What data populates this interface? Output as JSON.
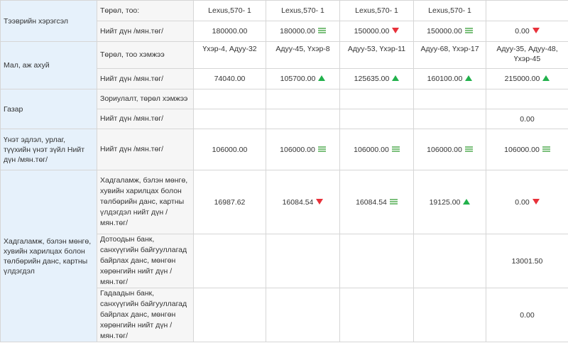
{
  "rows": {
    "equipment": {
      "category": "Тээврийн хэрэгсэл",
      "type_label": "Төрөл, тоо:",
      "types": [
        "Lexus,570- 1",
        "Lexus,570- 1",
        "Lexus,570- 1",
        "Lexus,570- 1",
        ""
      ],
      "total_label": "Нийт дүн /мян.төг/",
      "totals": [
        {
          "value": "180000.00",
          "trend": ""
        },
        {
          "value": "180000.00",
          "trend": "equal"
        },
        {
          "value": "150000.00",
          "trend": "down"
        },
        {
          "value": "150000.00",
          "trend": "equal"
        },
        {
          "value": "0.00",
          "trend": "down"
        }
      ]
    },
    "livestock": {
      "category": "Мал, аж ахуй",
      "type_label": "Төрөл, тоо хэмжээ",
      "types": [
        "Үхэр-4, Адуу-32",
        "Адуу-45, Үхэр-8",
        "Адуу-53, Үхэр-11",
        "Адуу-68, Үхэр-17",
        "Адуу-35, Адуу-48, Үхэр-45"
      ],
      "total_label": "Нийт дүн /мян.төг/",
      "totals": [
        {
          "value": "74040.00",
          "trend": ""
        },
        {
          "value": "105700.00",
          "trend": "up"
        },
        {
          "value": "125635.00",
          "trend": "up"
        },
        {
          "value": "160100.00",
          "trend": "up"
        },
        {
          "value": "215000.00",
          "trend": "up"
        }
      ]
    },
    "land": {
      "category": "Газар",
      "type_label": "Зориулалт, төрөл хэмжээ",
      "total_label": "Нийт дүн /мян.төг/",
      "totals": [
        {
          "value": "",
          "trend": ""
        },
        {
          "value": "",
          "trend": ""
        },
        {
          "value": "",
          "trend": ""
        },
        {
          "value": "",
          "trend": ""
        },
        {
          "value": "0.00",
          "trend": ""
        }
      ]
    },
    "valuables": {
      "category": "Үнэт эдлэл, урлаг, түүхийн үнэт зүйл Нийт дүн /мян.төг/",
      "total_label": "Нийт дүн /мян.төг/",
      "totals": [
        {
          "value": "106000.00",
          "trend": ""
        },
        {
          "value": "106000.00",
          "trend": "equal"
        },
        {
          "value": "106000.00",
          "trend": "equal"
        },
        {
          "value": "106000.00",
          "trend": "equal"
        },
        {
          "value": "106000.00",
          "trend": "equal"
        }
      ]
    },
    "savings": {
      "category": "Хадгаламж, бэлэн мөнгө, хувийн харилцах болон төлбөрийн данс, картны үлдэгдэл",
      "total": {
        "label": "Хадгаламж, бэлэн мөнгө, хувийн харилцах болон төлбөрийн данс, картны үлдэгдэл нийт дүн /мян.төг/",
        "values": [
          {
            "value": "16987.62",
            "trend": ""
          },
          {
            "value": "16084.54",
            "trend": "down"
          },
          {
            "value": "16084.54",
            "trend": "equal"
          },
          {
            "value": "19125.00",
            "trend": "up"
          },
          {
            "value": "0.00",
            "trend": "down"
          }
        ]
      },
      "domestic": {
        "label": "Дотоодын банк, санхүүгийн байгууллагад байрлах данс, мөнгөн хөрөнгийн нийт дүн /мян.төг/",
        "values": [
          {
            "value": "",
            "trend": ""
          },
          {
            "value": "",
            "trend": ""
          },
          {
            "value": "",
            "trend": ""
          },
          {
            "value": "",
            "trend": ""
          },
          {
            "value": "13001.50",
            "trend": ""
          }
        ]
      },
      "foreign": {
        "label": "Гадаадын банк, санхүүгийн байгууллагад байрлах данс, мөнгөн хөрөнгийн нийт дүн /мян.төг/",
        "values": [
          {
            "value": "",
            "trend": ""
          },
          {
            "value": "",
            "trend": ""
          },
          {
            "value": "",
            "trend": ""
          },
          {
            "value": "",
            "trend": ""
          },
          {
            "value": "0.00",
            "trend": ""
          }
        ]
      }
    }
  },
  "trend_colors": {
    "up": "#22b14c",
    "down": "#e8313a",
    "equal": "#7cc07c"
  }
}
